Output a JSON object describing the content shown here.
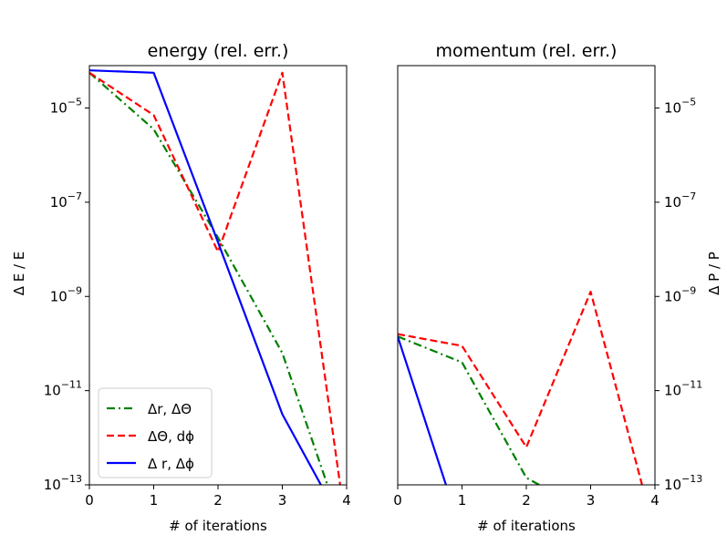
{
  "chart_data": [
    {
      "type": "line",
      "title": "energy (rel. err.)",
      "xlabel": "# of iterations",
      "ylabel": "Δ E / E",
      "yscale": "log",
      "xlim": [
        0,
        4
      ],
      "ylim_exp": [
        -13,
        -4.1
      ],
      "xticks": [
        "0",
        "1",
        "2",
        "3",
        "4"
      ],
      "ytick_labels": [
        {
          "base": "10",
          "exp": "−5",
          "exp_value": -5
        },
        {
          "base": "10",
          "exp": "−7",
          "exp_value": -7
        },
        {
          "base": "10",
          "exp": "−9",
          "exp_value": -9
        },
        {
          "base": "10",
          "exp": "−11",
          "exp_value": -11
        },
        {
          "base": "10",
          "exp": "−13",
          "exp_value": -13
        }
      ],
      "ytick_side": "left",
      "legend": {
        "location": "lower-left"
      },
      "series": [
        {
          "name": "Δr, ΔΘ",
          "color": "#008000",
          "style": "dashdot",
          "x": [
            0,
            1,
            2,
            3,
            3.7
          ],
          "log10_y": [
            -4.25,
            -5.45,
            -7.75,
            -10.2,
            -13.0
          ]
        },
        {
          "name": "ΔΘ, dϕ",
          "color": "#ff0000",
          "style": "dashed",
          "x": [
            0,
            1,
            2,
            3,
            3.9
          ],
          "log10_y": [
            -4.25,
            -5.15,
            -8.05,
            -4.25,
            -13.0
          ]
        },
        {
          "name": "Δ r, Δϕ",
          "color": "#0000ff",
          "style": "solid",
          "x": [
            0,
            1,
            2,
            3,
            3.6
          ],
          "log10_y": [
            -4.2,
            -4.25,
            -7.85,
            -11.5,
            -13.0
          ]
        }
      ]
    },
    {
      "type": "line",
      "title": "momentum (rel. err.)",
      "xlabel": "# of iterations",
      "ylabel": "Δ P / P",
      "yscale": "log",
      "xlim": [
        0,
        4
      ],
      "ylim_exp": [
        -13,
        -4.1
      ],
      "xticks": [
        "0",
        "1",
        "2",
        "3",
        "4"
      ],
      "ytick_labels": [
        {
          "base": "10",
          "exp": "−5",
          "exp_value": -5
        },
        {
          "base": "10",
          "exp": "−7",
          "exp_value": -7
        },
        {
          "base": "10",
          "exp": "−9",
          "exp_value": -9
        },
        {
          "base": "10",
          "exp": "−11",
          "exp_value": -11
        },
        {
          "base": "10",
          "exp": "−13",
          "exp_value": -13
        }
      ],
      "ytick_side": "right",
      "series": [
        {
          "name": "Δr, ΔΘ",
          "color": "#008000",
          "style": "dashdot",
          "x": [
            0,
            1,
            2,
            2.2
          ],
          "log10_y": [
            -9.85,
            -10.4,
            -12.85,
            -13.0
          ]
        },
        {
          "name": "ΔΘ, dϕ",
          "color": "#ff0000",
          "style": "dashed",
          "x": [
            0,
            1,
            2,
            3,
            3.8
          ],
          "log10_y": [
            -9.8,
            -10.05,
            -12.2,
            -8.9,
            -13.0
          ]
        },
        {
          "name": "Δ r, Δϕ",
          "color": "#0000ff",
          "style": "solid",
          "x": [
            0,
            0.75
          ],
          "log10_y": [
            -9.85,
            -13.0
          ]
        }
      ]
    }
  ]
}
